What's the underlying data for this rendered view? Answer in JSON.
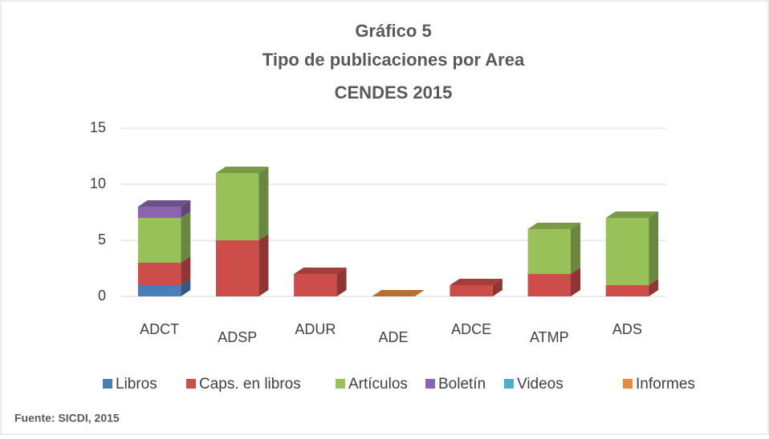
{
  "chart_data": {
    "type": "bar3d",
    "title": "Gráfico 5",
    "subtitle": "Tipo de publicaciones por Area",
    "subtitle2": "CENDES 2015",
    "categories": [
      "ADCT",
      "ADSP",
      "ADUR",
      "ADE",
      "ADCE",
      "ATMP",
      "ADS"
    ],
    "series": [
      {
        "name": "Libros",
        "color": "#4a7ebb",
        "values": [
          1,
          0,
          0,
          0,
          0,
          0,
          0
        ]
      },
      {
        "name": "Caps. en libros",
        "color": "#cc4d4a",
        "values": [
          2,
          5,
          2,
          0,
          1,
          2,
          1
        ]
      },
      {
        "name": "Artículos",
        "color": "#98c15a",
        "values": [
          4,
          6,
          0,
          0,
          0,
          4,
          6
        ]
      },
      {
        "name": "Boletín",
        "color": "#8a64ac",
        "values": [
          1,
          0,
          0,
          0,
          0,
          0,
          0
        ]
      },
      {
        "name": "Videos",
        "color": "#4bafc6",
        "values": [
          0,
          0,
          0,
          0,
          0,
          0,
          0
        ]
      },
      {
        "name": "Informes",
        "color": "#e88a3a",
        "values": [
          0,
          0,
          0,
          0,
          0,
          0,
          0
        ]
      }
    ],
    "stacked": true,
    "ylim": [
      0,
      15
    ],
    "yticks": [
      0,
      5,
      10,
      15
    ],
    "grid": true,
    "legend": "bottom",
    "source": "Fuente: SICDI, 2015"
  }
}
